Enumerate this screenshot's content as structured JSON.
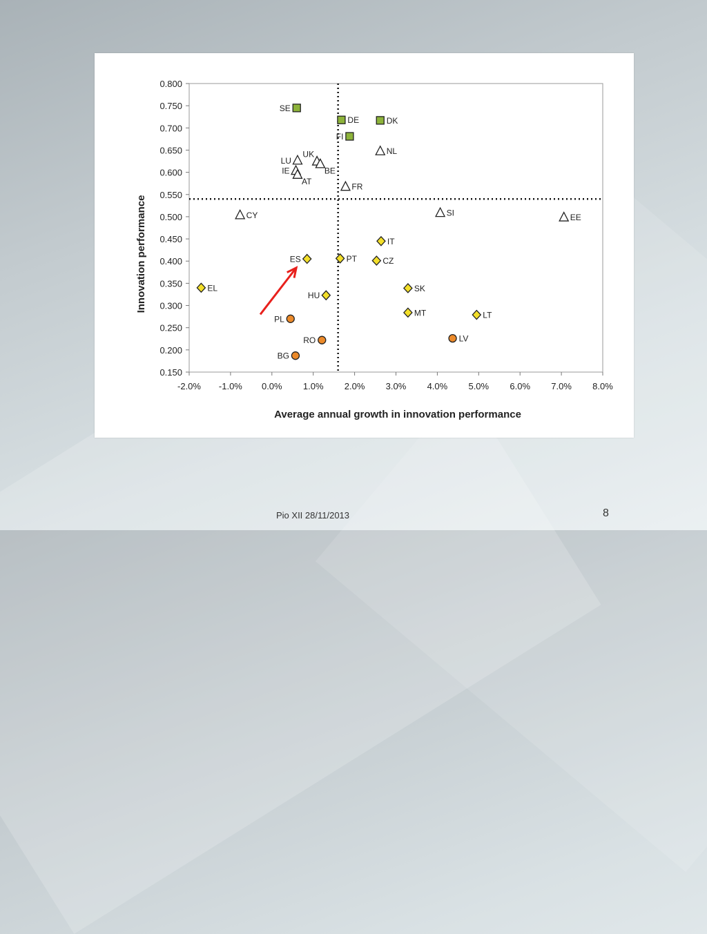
{
  "footer": {
    "text": "Pio XII 28/11/2013",
    "page_number": "8"
  },
  "colors": {
    "green": "#8db33a",
    "white_triangle": "#ffffff",
    "yellow": "#f3df2a",
    "orange": "#ec8a2a",
    "arrow": "#e8201c"
  },
  "chart_data": {
    "type": "scatter",
    "xlabel": "Average annual growth in innovation performance",
    "ylabel": "Innovation performance",
    "xlim": [
      -0.02,
      0.08
    ],
    "ylim": [
      0.15,
      0.8
    ],
    "xticks": [
      -0.02,
      -0.01,
      0.0,
      0.01,
      0.02,
      0.03,
      0.04,
      0.05,
      0.06,
      0.07,
      0.08
    ],
    "xtick_labels": [
      "-2.0%",
      "-1.0%",
      "0.0%",
      "1.0%",
      "2.0%",
      "3.0%",
      "4.0%",
      "5.0%",
      "6.0%",
      "7.0%",
      "8.0%"
    ],
    "yticks": [
      0.15,
      0.2,
      0.25,
      0.3,
      0.35,
      0.4,
      0.45,
      0.5,
      0.55,
      0.6,
      0.65,
      0.7,
      0.75,
      0.8
    ],
    "ytick_labels": [
      "0.150",
      "0.200",
      "0.250",
      "0.300",
      "0.350",
      "0.400",
      "0.450",
      "0.500",
      "0.550",
      "0.600",
      "0.650",
      "0.700",
      "0.750",
      "0.800"
    ],
    "reference_lines": {
      "x": 0.016,
      "y": 0.54
    },
    "grid": false,
    "legend": "none",
    "annotations": [
      {
        "type": "arrow",
        "from": [
          -0.0028,
          0.28
        ],
        "to": [
          0.0059,
          0.385
        ]
      }
    ],
    "points": [
      {
        "label": "SE",
        "x": 0.006,
        "y": 0.745,
        "marker": "square",
        "color": "green",
        "label_side": "left"
      },
      {
        "label": "DE",
        "x": 0.0168,
        "y": 0.718,
        "marker": "square",
        "color": "green",
        "label_side": "right"
      },
      {
        "label": "DK",
        "x": 0.0262,
        "y": 0.717,
        "marker": "square",
        "color": "green",
        "label_side": "right"
      },
      {
        "label": "FI",
        "x": 0.0188,
        "y": 0.681,
        "marker": "square",
        "color": "green",
        "label_side": "left"
      },
      {
        "label": "NL",
        "x": 0.0262,
        "y": 0.648,
        "marker": "triangle",
        "color": "white_triangle",
        "label_side": "right"
      },
      {
        "label": "LU",
        "x": 0.0062,
        "y": 0.627,
        "marker": "triangle",
        "color": "white_triangle",
        "label_side": "left"
      },
      {
        "label": "UK",
        "x": 0.0109,
        "y": 0.625,
        "marker": "triangle",
        "color": "white_triangle",
        "label_side": "upleft"
      },
      {
        "label": "BE",
        "x": 0.0117,
        "y": 0.619,
        "marker": "triangle",
        "color": "white_triangle",
        "label_side": "downright"
      },
      {
        "label": "IE",
        "x": 0.0058,
        "y": 0.604,
        "marker": "triangle",
        "color": "white_triangle",
        "label_side": "left"
      },
      {
        "label": "AT",
        "x": 0.0062,
        "y": 0.595,
        "marker": "triangle",
        "color": "white_triangle",
        "label_side": "downright"
      },
      {
        "label": "FR",
        "x": 0.0178,
        "y": 0.568,
        "marker": "triangle",
        "color": "white_triangle",
        "label_side": "right"
      },
      {
        "label": "CY",
        "x": -0.0077,
        "y": 0.504,
        "marker": "triangle",
        "color": "white_triangle",
        "label_side": "right"
      },
      {
        "label": "SI",
        "x": 0.0407,
        "y": 0.509,
        "marker": "triangle",
        "color": "white_triangle",
        "label_side": "right"
      },
      {
        "label": "EE",
        "x": 0.0706,
        "y": 0.499,
        "marker": "triangle",
        "color": "white_triangle",
        "label_side": "right"
      },
      {
        "label": "IT",
        "x": 0.0264,
        "y": 0.445,
        "marker": "diamond",
        "color": "yellow",
        "label_side": "right"
      },
      {
        "label": "ES",
        "x": 0.0085,
        "y": 0.405,
        "marker": "diamond",
        "color": "yellow",
        "label_side": "left"
      },
      {
        "label": "PT",
        "x": 0.0165,
        "y": 0.406,
        "marker": "diamond",
        "color": "yellow",
        "label_side": "right"
      },
      {
        "label": "CZ",
        "x": 0.0253,
        "y": 0.401,
        "marker": "diamond",
        "color": "yellow",
        "label_side": "right"
      },
      {
        "label": "EL",
        "x": -0.0171,
        "y": 0.34,
        "marker": "diamond",
        "color": "yellow",
        "label_side": "right"
      },
      {
        "label": "SK",
        "x": 0.0329,
        "y": 0.339,
        "marker": "diamond",
        "color": "yellow",
        "label_side": "right"
      },
      {
        "label": "HU",
        "x": 0.0131,
        "y": 0.323,
        "marker": "diamond",
        "color": "yellow",
        "label_side": "left"
      },
      {
        "label": "MT",
        "x": 0.0329,
        "y": 0.284,
        "marker": "diamond",
        "color": "yellow",
        "label_side": "right"
      },
      {
        "label": "LT",
        "x": 0.0495,
        "y": 0.279,
        "marker": "diamond",
        "color": "yellow",
        "label_side": "right"
      },
      {
        "label": "PL",
        "x": 0.0045,
        "y": 0.27,
        "marker": "circle",
        "color": "orange",
        "label_side": "left"
      },
      {
        "label": "LV",
        "x": 0.0437,
        "y": 0.226,
        "marker": "circle",
        "color": "orange",
        "label_side": "right"
      },
      {
        "label": "RO",
        "x": 0.0121,
        "y": 0.222,
        "marker": "circle",
        "color": "orange",
        "label_side": "left"
      },
      {
        "label": "BG",
        "x": 0.0057,
        "y": 0.187,
        "marker": "circle",
        "color": "orange",
        "label_side": "left"
      }
    ]
  }
}
